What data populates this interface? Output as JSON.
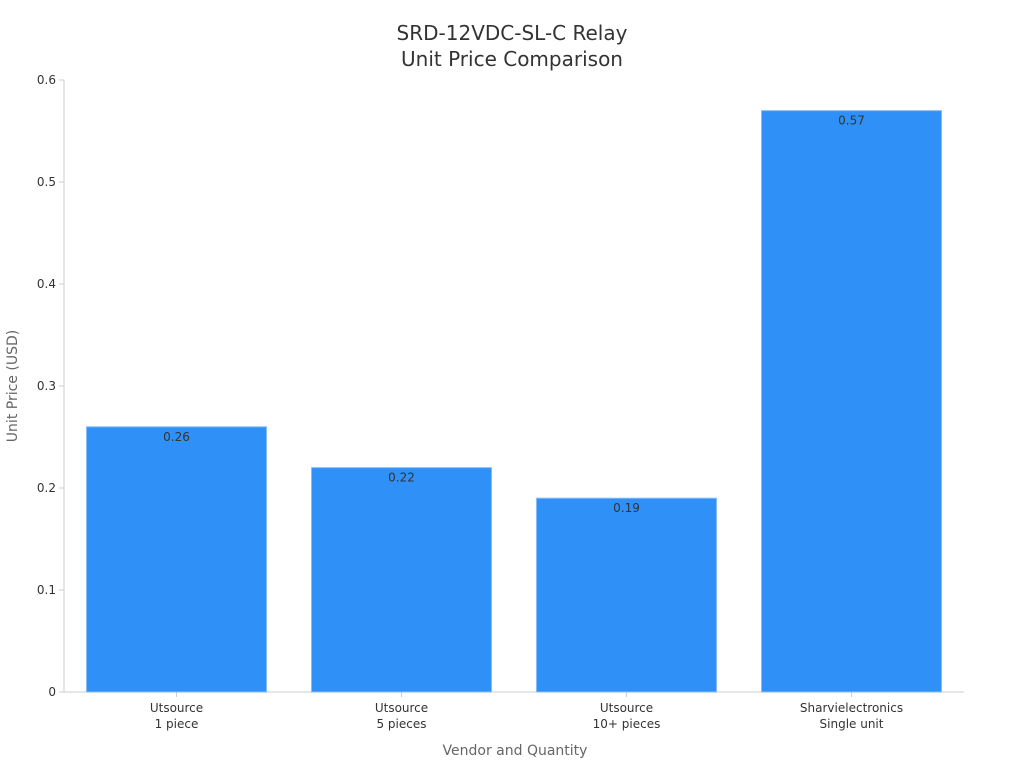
{
  "chart_data": {
    "type": "bar",
    "title_lines": [
      "SRD-12VDC-SL-C Relay",
      "Unit Price Comparison"
    ],
    "xlabel": "Vendor and Quantity",
    "ylabel": "Unit Price (USD)",
    "categories": [
      [
        "Utsource",
        "1 piece"
      ],
      [
        "Utsource",
        "5 pieces"
      ],
      [
        "Utsource",
        "10+ pieces"
      ],
      [
        "Sharvielectronics",
        "Single unit"
      ]
    ],
    "values": [
      0.26,
      0.22,
      0.19,
      0.57
    ],
    "value_labels": [
      "0.26",
      "0.22",
      "0.19",
      "0.57"
    ],
    "ylim": [
      0,
      0.6
    ],
    "yticks": [
      0,
      0.1,
      0.2,
      0.3,
      0.4,
      0.5,
      0.6
    ],
    "ytick_labels": [
      "0",
      "0.1",
      "0.2",
      "0.3",
      "0.4",
      "0.5",
      "0.6"
    ],
    "grid": false,
    "legend": "none",
    "bar_color": "#2f91f8",
    "bar_edge_color": "#86bdf8",
    "axis_color": "#cccccc",
    "text_color": "#333333",
    "axis_title_color": "#666666"
  }
}
